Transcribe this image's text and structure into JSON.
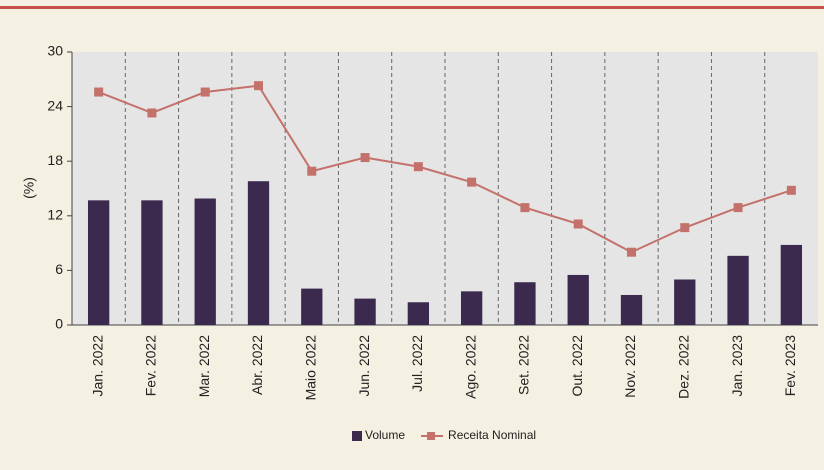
{
  "chart_data": {
    "type": "bar-line",
    "y_label": "(%)",
    "categories": [
      "Jan. 2022",
      "Fev. 2022",
      "Mar. 2022",
      "Abr. 2022",
      "Maio 2022",
      "Jun. 2022",
      "Jul. 2022",
      "Ago. 2022",
      "Set. 2022",
      "Out. 2022",
      "Nov. 2022",
      "Dez. 2022",
      "Jan. 2023",
      "Fev. 2023"
    ],
    "series": [
      {
        "name": "Volume",
        "type": "bar",
        "color": "#3b2a4e",
        "values": [
          13.7,
          13.7,
          13.9,
          15.8,
          4.0,
          2.9,
          2.5,
          3.7,
          4.7,
          5.5,
          3.3,
          5.0,
          7.6,
          8.8
        ]
      },
      {
        "name": "Receita Nominal",
        "type": "line",
        "color": "#c4716b",
        "values": [
          25.6,
          23.3,
          25.6,
          26.3,
          16.9,
          18.4,
          17.4,
          15.7,
          12.9,
          11.1,
          8.0,
          10.7,
          12.9,
          14.8
        ]
      }
    ],
    "ylim": [
      0,
      30
    ],
    "yticks": [
      0,
      6,
      12,
      18,
      24,
      30
    ],
    "legend": "bottom"
  }
}
